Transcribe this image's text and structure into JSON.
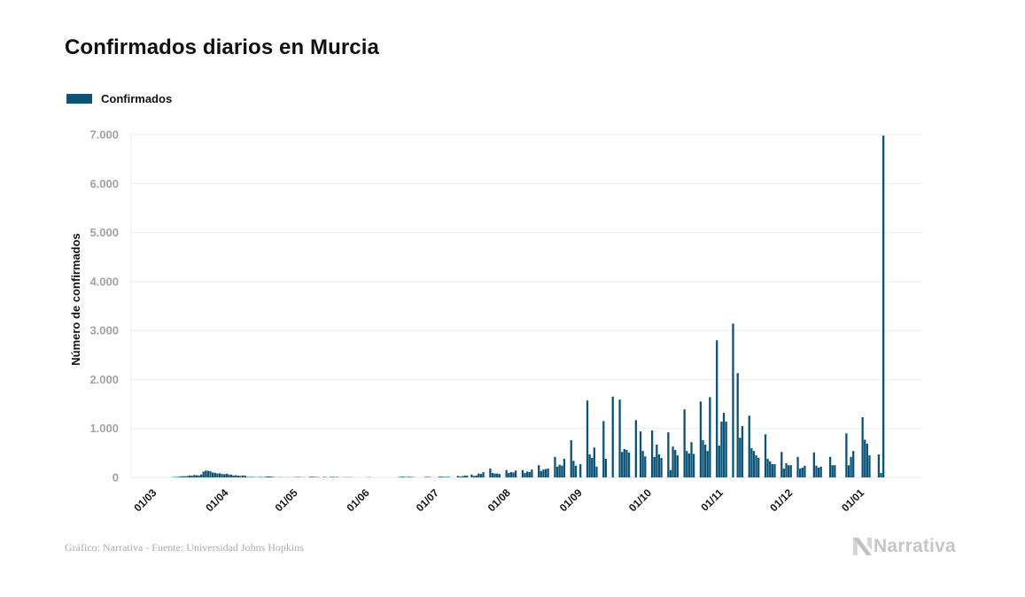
{
  "chart_data": {
    "type": "bar",
    "title": "Confirmados diarios en Murcia",
    "xlabel": "",
    "ylabel": "Número de confirmados",
    "legend_position": "top-left",
    "legend": [
      {
        "label": "Confirmados",
        "color": "#0c5378"
      }
    ],
    "grid": "horizontal",
    "ylim": [
      0,
      7000
    ],
    "yticks": [
      {
        "value": 0,
        "label": "0"
      },
      {
        "value": 1000,
        "label": "1.000"
      },
      {
        "value": 2000,
        "label": "2.000"
      },
      {
        "value": 3000,
        "label": "3.000"
      },
      {
        "value": 4000,
        "label": "4.000"
      },
      {
        "value": 5000,
        "label": "5.000"
      },
      {
        "value": 6000,
        "label": "6.000"
      },
      {
        "value": 7000,
        "label": "7.000"
      }
    ],
    "x_unit": "days since 01/03",
    "xlim": [
      -10.3,
      331.8
    ],
    "xticks": [
      {
        "day": 0,
        "label": "01/03"
      },
      {
        "day": 31,
        "label": "01/04"
      },
      {
        "day": 61,
        "label": "01/05"
      },
      {
        "day": 92,
        "label": "01/06"
      },
      {
        "day": 122,
        "label": "01/07"
      },
      {
        "day": 153,
        "label": "01/08"
      },
      {
        "day": 184,
        "label": "01/09"
      },
      {
        "day": 214,
        "label": "01/10"
      },
      {
        "day": 245,
        "label": "01/11"
      },
      {
        "day": 275,
        "label": "01/12"
      },
      {
        "day": 306,
        "label": "01/01"
      }
    ],
    "series": [
      {
        "name": "Confirmados",
        "color": "#0c5378",
        "start_day": 0,
        "values": [
          0,
          0,
          0,
          0,
          0,
          0,
          0,
          0,
          8,
          10,
          12,
          20,
          25,
          22,
          28,
          40,
          35,
          50,
          45,
          40,
          60,
          120,
          140,
          135,
          125,
          100,
          95,
          80,
          85,
          70,
          65,
          75,
          60,
          55,
          40,
          45,
          35,
          30,
          40,
          35,
          10,
          8,
          12,
          6,
          5,
          8,
          10,
          6,
          15,
          20,
          18,
          10,
          5,
          3,
          6,
          4,
          2,
          5,
          3,
          2,
          4,
          8,
          10,
          6,
          4,
          2,
          0,
          12,
          15,
          10,
          8,
          5,
          0,
          10,
          8,
          0,
          10,
          12,
          8,
          10,
          0,
          0,
          5,
          4,
          6,
          5,
          0,
          0,
          0,
          0,
          0,
          0,
          4,
          6,
          0,
          0,
          0,
          0,
          0,
          0,
          0,
          0,
          0,
          0,
          0,
          3,
          12,
          15,
          10,
          8,
          14,
          10,
          6,
          0,
          0,
          0,
          0,
          10,
          12,
          8,
          0,
          0,
          0,
          15,
          18,
          12,
          10,
          14,
          0,
          0,
          0,
          30,
          20,
          25,
          40,
          35,
          0,
          60,
          30,
          40,
          80,
          70,
          110,
          0,
          0,
          180,
          90,
          80,
          80,
          70,
          0,
          0,
          150,
          90,
          110,
          100,
          140,
          0,
          0,
          150,
          90,
          120,
          110,
          160,
          0,
          0,
          250,
          130,
          160,
          170,
          180,
          0,
          0,
          420,
          220,
          260,
          240,
          380,
          0,
          0,
          760,
          340,
          240,
          0,
          270,
          0,
          0,
          1570,
          470,
          400,
          610,
          220,
          0,
          0,
          1150,
          380,
          0,
          0,
          1650,
          0,
          0,
          1590,
          520,
          580,
          560,
          510,
          0,
          0,
          1170,
          0,
          940,
          540,
          430,
          0,
          0,
          960,
          420,
          670,
          470,
          400,
          0,
          0,
          920,
          150,
          630,
          560,
          450,
          0,
          0,
          1390,
          540,
          490,
          720,
          480,
          0,
          0,
          1550,
          760,
          670,
          540,
          1640,
          0,
          0,
          2800,
          650,
          1140,
          1320,
          1140,
          0,
          0,
          3140,
          0,
          2130,
          810,
          1050,
          0,
          0,
          1260,
          600,
          540,
          450,
          400,
          0,
          0,
          880,
          380,
          330,
          270,
          270,
          0,
          0,
          520,
          180,
          290,
          250,
          250,
          0,
          0,
          420,
          180,
          200,
          240,
          0,
          0,
          0,
          510,
          240,
          200,
          220,
          0,
          0,
          0,
          420,
          250,
          250,
          0,
          0,
          0,
          0,
          900,
          250,
          420,
          540,
          0,
          0,
          0,
          1230,
          770,
          690,
          450,
          0,
          0,
          0,
          470,
          90,
          6980
        ]
      }
    ]
  },
  "footer": {
    "source": "Gráfico: Narrativa - Fuente: Universidad Johns Hopkins",
    "brand": "Narrativa",
    "brand_icon": "narrativa-n-logo",
    "brand_color": "#c6c6c6"
  }
}
